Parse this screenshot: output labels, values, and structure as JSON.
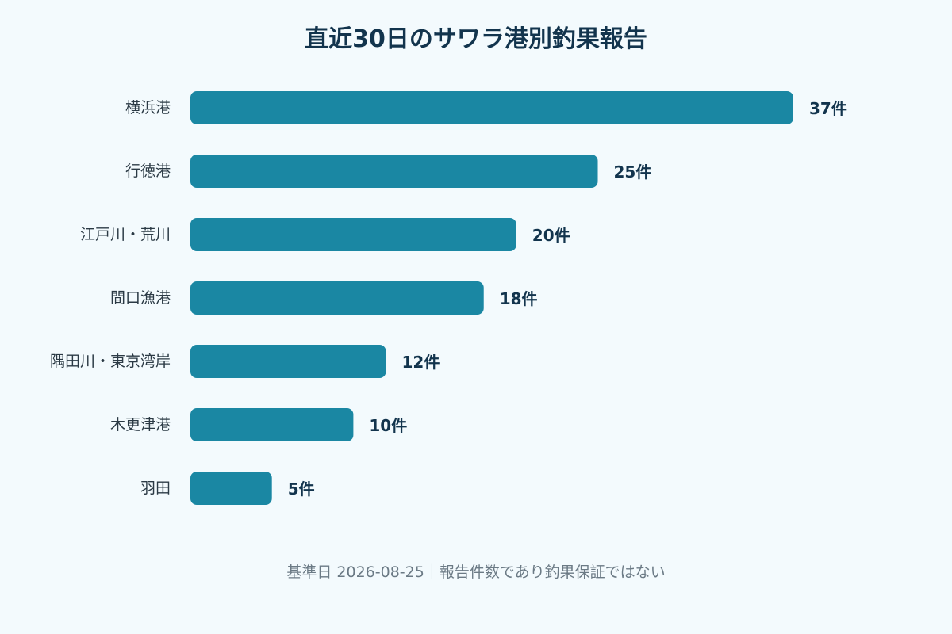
{
  "chart_data": {
    "type": "bar",
    "orientation": "horizontal",
    "title": "直近30日のサワラ港別釣果報告",
    "categories": [
      "横浜港",
      "行徳港",
      "江戸川・荒川",
      "間口漁港",
      "隅田川・東京湾岸",
      "木更津港",
      "羽田"
    ],
    "values": [
      37,
      25,
      20,
      18,
      12,
      10,
      5
    ],
    "value_labels": [
      "37件",
      "25件",
      "20件",
      "18件",
      "12件",
      "10件",
      "5件"
    ],
    "xlabel": "",
    "ylabel": "",
    "xlim": [
      0,
      37
    ],
    "grid": false,
    "legend": "none",
    "bar_color": "#1a87a3"
  },
  "footnote": "基準日 2026-08-25｜報告件数であり釣果保証ではない"
}
